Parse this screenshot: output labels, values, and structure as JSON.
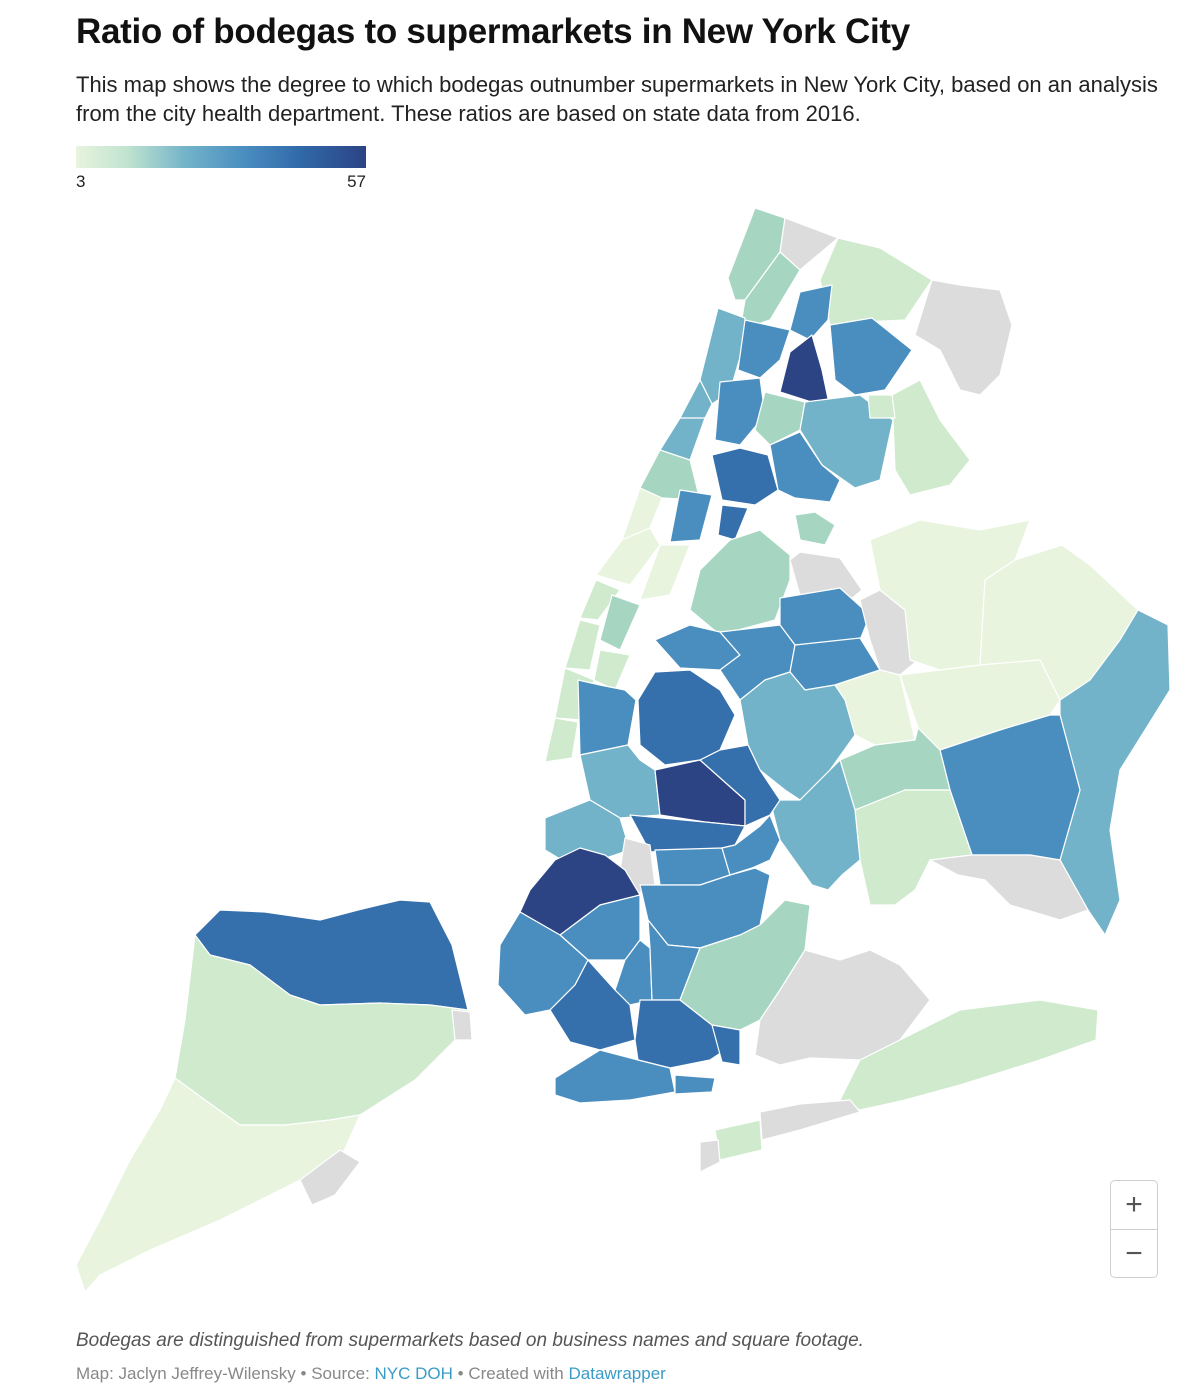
{
  "title": "Ratio of bodegas to supermarkets in New York City",
  "subtitle": "This map shows the degree to which bodegas outnumber supermarkets in New York City, based on an analysis from the city health department. These ratios are based on state data from 2016.",
  "legend": {
    "min": "3",
    "max": "57"
  },
  "colors": {
    "scale": [
      "#e8f4de",
      "#cfeacd",
      "#a6d6c2",
      "#72b3c9",
      "#4a8ec0",
      "#3570ac",
      "#2c4384"
    ],
    "no_data": "#dcdcdc"
  },
  "zoom": {
    "in_label": "+",
    "out_label": "−"
  },
  "notes": "Bodegas are distinguished from supermarkets based on business names and square footage.",
  "byline": {
    "prefix": "Map: Jaclyn Jeffrey-Wilensky • Source: ",
    "source": "NYC DOH",
    "middle": " • Created with ",
    "tool": "Datawrapper"
  }
}
